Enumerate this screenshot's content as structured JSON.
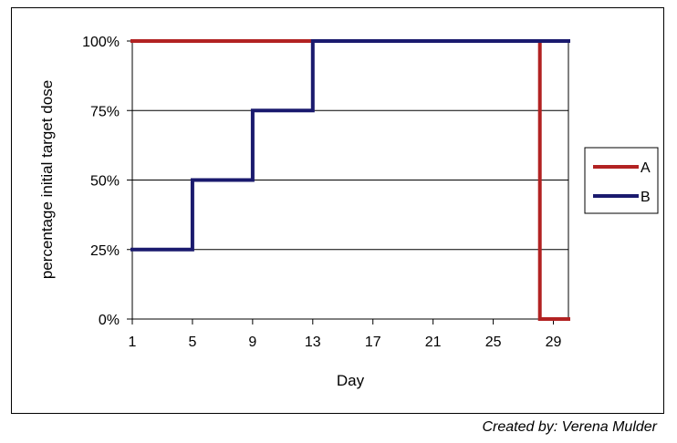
{
  "chart_data": {
    "type": "line",
    "xlabel": "Day",
    "ylabel": "percentage initial target dose",
    "xlim": [
      1,
      30
    ],
    "ylim": [
      0,
      100
    ],
    "x_ticks": [
      1,
      5,
      9,
      13,
      17,
      21,
      25,
      29
    ],
    "x_tick_labels": [
      "1",
      "5",
      "9",
      "13",
      "17",
      "21",
      "25",
      "29"
    ],
    "y_ticks": [
      0,
      25,
      50,
      75,
      100
    ],
    "y_tick_labels": [
      "0%",
      "25%",
      "50%",
      "75%",
      "100%"
    ],
    "grid": "horizontal",
    "legend_position": "right",
    "series": [
      {
        "name": "A",
        "color": "#b22222",
        "points": [
          [
            1,
            100
          ],
          [
            28.1,
            100
          ],
          [
            28.1,
            0
          ],
          [
            30,
            0
          ]
        ]
      },
      {
        "name": "B",
        "color": "#1a1a6e",
        "points": [
          [
            1,
            25
          ],
          [
            5,
            25
          ],
          [
            5,
            50
          ],
          [
            9,
            50
          ],
          [
            9,
            75
          ],
          [
            13,
            75
          ],
          [
            13,
            100
          ],
          [
            30,
            100
          ]
        ]
      }
    ]
  },
  "credit": "Created by: Verena Mulder"
}
